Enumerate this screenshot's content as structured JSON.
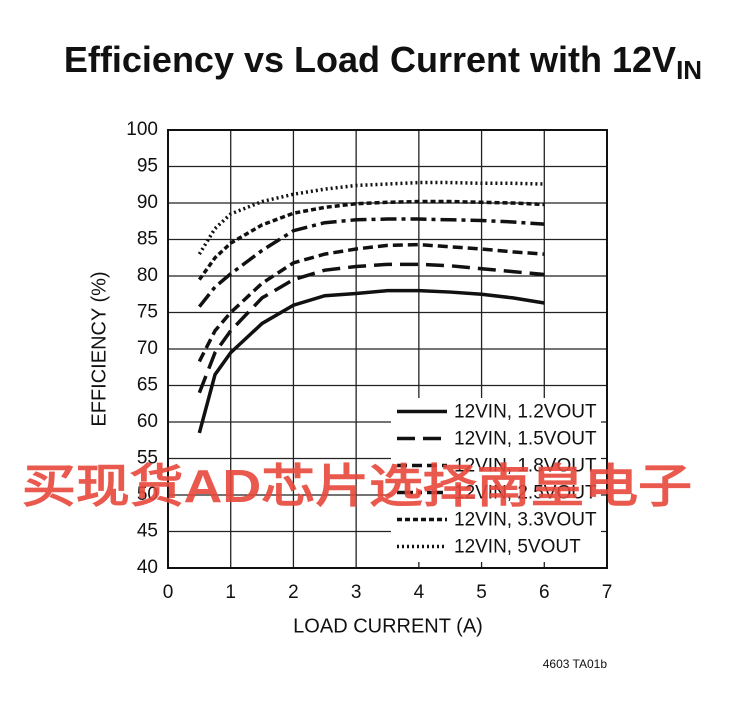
{
  "chart_data": {
    "type": "line",
    "title": "Efficiency vs Load Current with 12V",
    "title_subscript": "IN",
    "x_label": "LOAD CURRENT (A)",
    "y_label": "EFFICIENCY (%)",
    "footnote": "4603 TA01b",
    "watermark": "买现货AD芯片选择南皇电子",
    "x": [
      0.5,
      0.75,
      1,
      1.5,
      2,
      2.5,
      3,
      3.5,
      4,
      4.5,
      5,
      5.5,
      6
    ],
    "xlim": [
      0,
      7
    ],
    "xticks": [
      0,
      1,
      2,
      3,
      4,
      5,
      6,
      7
    ],
    "ylim": [
      40,
      100
    ],
    "yticks": [
      40,
      45,
      50,
      55,
      60,
      65,
      70,
      75,
      80,
      85,
      90,
      95,
      100
    ],
    "grid": true,
    "legend": "lower right",
    "series": [
      {
        "name": "12VIN, 1.2VOUT",
        "color": "#111111",
        "dash": "none",
        "values": [
          58.5,
          66.5,
          69.5,
          73.5,
          76,
          77.3,
          77.6,
          78,
          78,
          77.8,
          77.5,
          77,
          76.3
        ]
      },
      {
        "name": "12VIN, 1.5VOUT",
        "color": "#111111",
        "dash": "18 8",
        "values": [
          64,
          69.5,
          72.5,
          77,
          79.5,
          80.8,
          81.3,
          81.6,
          81.6,
          81.4,
          81,
          80.6,
          80.2
        ]
      },
      {
        "name": "12VIN, 1.8VOUT",
        "color": "#111111",
        "dash": "10 5",
        "values": [
          68.3,
          72.5,
          75,
          79,
          81.8,
          83,
          83.7,
          84.2,
          84.3,
          84,
          83.7,
          83.3,
          83
        ]
      },
      {
        "name": "12VIN, 2.5VOUT",
        "color": "#111111",
        "dash": "16 5 4 5",
        "values": [
          75.8,
          78.5,
          80.3,
          83.5,
          86.2,
          87.3,
          87.7,
          87.8,
          87.8,
          87.7,
          87.6,
          87.4,
          87.1
        ]
      },
      {
        "name": "12VIN, 3.3VOUT",
        "color": "#111111",
        "dash": "5 3",
        "values": [
          79.5,
          82.5,
          84.5,
          87,
          88.6,
          89.4,
          89.9,
          90.1,
          90.2,
          90.2,
          90.1,
          90,
          89.8
        ]
      },
      {
        "name": "12VIN, 5VOUT",
        "color": "#111111",
        "dash": "2 3",
        "values": [
          83,
          86.5,
          88.5,
          90.2,
          91.2,
          91.9,
          92.4,
          92.6,
          92.8,
          92.8,
          92.7,
          92.7,
          92.6
        ]
      }
    ]
  }
}
